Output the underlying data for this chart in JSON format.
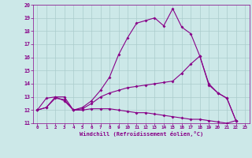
{
  "xlabel": "Windchill (Refroidissement éolien,°C)",
  "background_color": "#cce8e8",
  "grid_color": "#aacccc",
  "line_color": "#880088",
  "xlim": [
    -0.5,
    23.5
  ],
  "ylim": [
    11,
    20
  ],
  "xticks": [
    0,
    1,
    2,
    3,
    4,
    5,
    6,
    7,
    8,
    9,
    10,
    11,
    12,
    13,
    14,
    15,
    16,
    17,
    18,
    19,
    20,
    21,
    22,
    23
  ],
  "yticks": [
    11,
    12,
    13,
    14,
    15,
    16,
    17,
    18,
    19,
    20
  ],
  "line1_x": [
    0,
    1,
    2,
    3,
    4,
    5,
    6,
    7,
    8,
    9,
    10,
    11,
    12,
    13,
    14,
    15,
    16,
    17,
    18,
    19,
    20,
    21,
    22
  ],
  "line1_y": [
    12.0,
    12.9,
    13.0,
    12.7,
    12.0,
    12.2,
    12.7,
    13.5,
    14.5,
    16.2,
    17.5,
    18.6,
    18.8,
    19.0,
    18.4,
    19.7,
    18.3,
    17.8,
    16.1,
    13.9,
    13.3,
    12.9,
    11.2
  ],
  "line2_x": [
    0,
    1,
    2,
    3,
    4,
    5,
    6,
    7,
    8,
    9,
    10,
    11,
    12,
    13,
    14,
    15,
    16,
    17,
    18,
    19,
    20,
    21,
    22
  ],
  "line2_y": [
    12.0,
    12.2,
    13.0,
    13.0,
    12.0,
    12.1,
    12.5,
    13.0,
    13.3,
    13.5,
    13.7,
    13.8,
    13.9,
    14.0,
    14.1,
    14.2,
    14.8,
    15.5,
    16.1,
    14.0,
    13.3,
    12.9,
    11.2
  ],
  "line3_x": [
    0,
    1,
    2,
    3,
    4,
    5,
    6,
    7,
    8,
    9,
    10,
    11,
    12,
    13,
    14,
    15,
    16,
    17,
    18,
    19,
    20,
    21,
    22
  ],
  "line3_y": [
    12.0,
    12.2,
    12.9,
    12.8,
    12.0,
    12.0,
    12.1,
    12.1,
    12.1,
    12.0,
    11.9,
    11.8,
    11.8,
    11.7,
    11.6,
    11.5,
    11.4,
    11.3,
    11.3,
    11.2,
    11.1,
    11.0,
    11.2
  ]
}
